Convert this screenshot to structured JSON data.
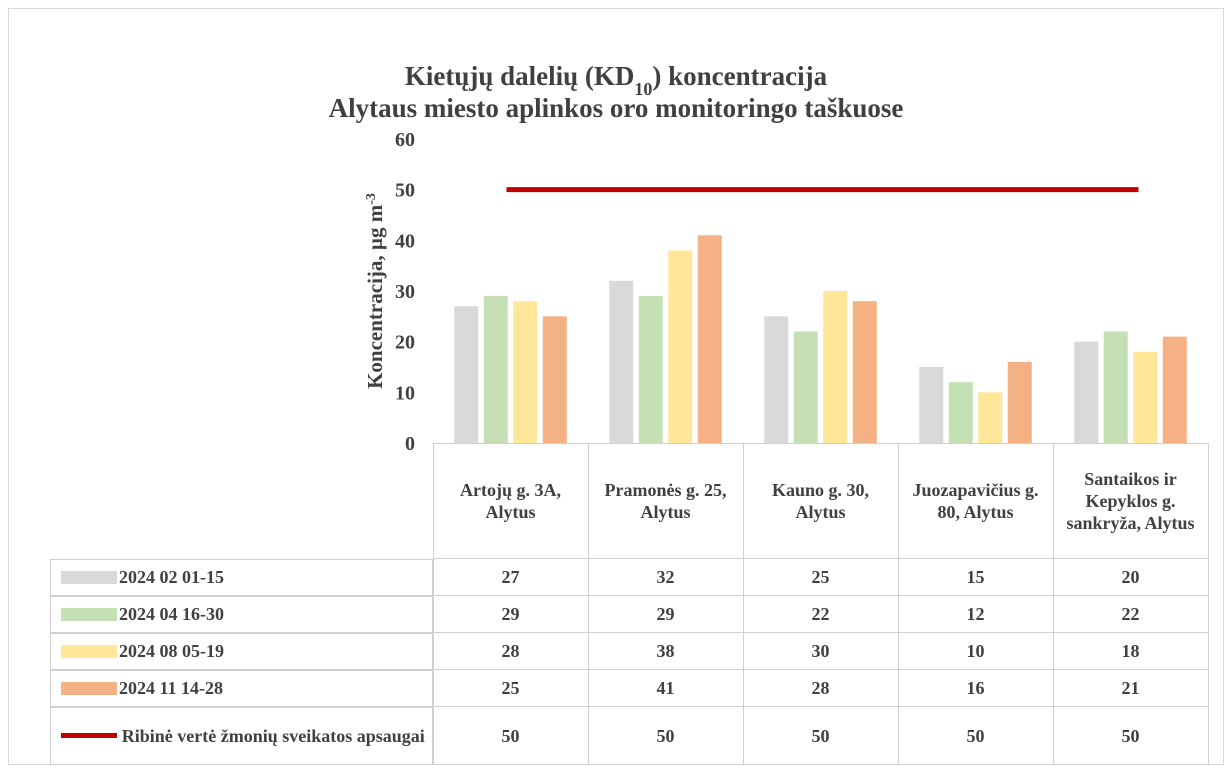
{
  "chart_data": {
    "type": "bar",
    "title_lines": [
      [
        {
          "text": "Kietųjų dalelių (KD"
        },
        {
          "text": "10",
          "sub": true
        },
        {
          "text": ") koncentracija"
        }
      ],
      [
        {
          "text": "Alytaus miesto aplinkos oro monitoringo taškuose"
        }
      ]
    ],
    "y_label": [
      {
        "text": "Koncentracija, µg m"
      },
      {
        "text": "-3",
        "sup": true
      }
    ],
    "categories": [
      "Artojų g. 3A, Alytus",
      "Pramonės g. 25, Alytus",
      "Kauno g. 30, Alytus",
      "Juozapavičius g. 80, Alytus",
      "Santaikos ir Kepyklos g. sankryža, Alytus"
    ],
    "series": [
      {
        "name": "2024 02 01-15",
        "color": "#d9d9d9",
        "values": [
          27,
          32,
          25,
          15,
          20
        ]
      },
      {
        "name": "2024 04 16-30",
        "color": "#c5e0b4",
        "values": [
          29,
          29,
          22,
          12,
          22
        ]
      },
      {
        "name": "2024 08 05-19",
        "color": "#ffe699",
        "values": [
          28,
          38,
          30,
          10,
          18
        ]
      },
      {
        "name": "2024 11 14-28",
        "color": "#f4b183",
        "values": [
          25,
          41,
          28,
          16,
          21
        ]
      },
      {
        "name": "Ribinė vertė žmonių sveikatos apsaugai",
        "color": "#c00000",
        "type": "line",
        "values": [
          50,
          50,
          50,
          50,
          50
        ]
      }
    ],
    "ylim": [
      0,
      60
    ],
    "yticks": [
      0,
      10,
      20,
      30,
      40,
      50,
      60
    ],
    "grid": false,
    "data_table": true
  }
}
